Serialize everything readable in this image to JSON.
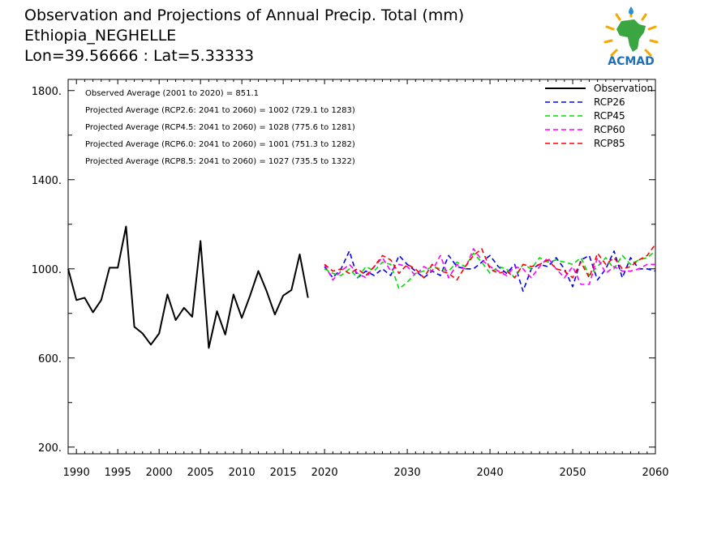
{
  "title": {
    "line1": "Observation and Projections of Annual Precip. Total (mm)",
    "line2": "Ethiopia_NEGHELLE",
    "line3": "Lon=39.56666 : Lat=5.33333"
  },
  "logo": {
    "text": "ACMAD",
    "icon": "africa-map-logo"
  },
  "colors": {
    "Observation": "#000000",
    "RCP26": "#0000ff",
    "RCP45": "#00dd00",
    "RCP60": "#ff00ff",
    "RCP85": "#ff0000"
  },
  "chart_data": {
    "type": "line",
    "xlim": [
      1989,
      2060
    ],
    "ylim": [
      170,
      1850
    ],
    "yticks": [
      200,
      600,
      1000,
      1400,
      1800
    ],
    "ytick_labels": [
      "200.",
      "600.",
      "1000.",
      "1400.",
      "1800."
    ],
    "xticks": [
      1990,
      1995,
      2000,
      2005,
      2010,
      2015,
      2020,
      2030,
      2040,
      2050,
      2060
    ],
    "xtick_labels": [
      "1990",
      "1995",
      "2000",
      "2005",
      "2010",
      "2015",
      "2020",
      "2030",
      "2040",
      "2050",
      "2060"
    ],
    "annotations": [
      "Observed Average (2001 to 2020) = 851.1",
      "Projected Average (RCP2.6: 2041 to 2060) = 1002 (729.1 to 1283)",
      "Projected Average (RCP4.5: 2041 to 2060) = 1028 (775.6 to 1281)",
      "Projected Average (RCP6.0: 2041 to 2060) = 1001 (751.3 to 1282)",
      "Projected Average (RCP8.5: 2041 to 2060) = 1027 (735.5 to 1322)"
    ],
    "legend_position": "top-right",
    "series": [
      {
        "name": "Observation",
        "style": "solid",
        "x": [
          1989,
          1990,
          1991,
          1992,
          1993,
          1994,
          1995,
          1996,
          1997,
          1998,
          1999,
          2000,
          2001,
          2002,
          2003,
          2004,
          2005,
          2006,
          2007,
          2008,
          2009,
          2010,
          2011,
          2012,
          2013,
          2014,
          2015,
          2016,
          2017,
          2018,
          2019,
          2020
        ],
        "values": [
          1000,
          860,
          870,
          805,
          860,
          1005,
          1005,
          1190,
          740,
          710,
          660,
          710,
          885,
          770,
          825,
          785,
          1125,
          645,
          810,
          705,
          885,
          780,
          880,
          990,
          900,
          795,
          880,
          905,
          1065,
          870,
          null,
          null
        ]
      },
      {
        "name": "RCP26",
        "style": "dashed",
        "x": [
          2020,
          2021,
          2022,
          2023,
          2024,
          2025,
          2026,
          2027,
          2028,
          2029,
          2030,
          2031,
          2032,
          2033,
          2034,
          2035,
          2036,
          2037,
          2038,
          2039,
          2040,
          2041,
          2042,
          2043,
          2044,
          2045,
          2046,
          2047,
          2048,
          2049,
          2050,
          2051,
          2052,
          2053,
          2054,
          2055,
          2056,
          2057,
          2058,
          2059,
          2060
        ],
        "values": [
          1010,
          960,
          1000,
          1080,
          960,
          990,
          970,
          1000,
          970,
          1060,
          1020,
          990,
          960,
          990,
          970,
          1060,
          1010,
          1000,
          1000,
          1030,
          1060,
          1010,
          980,
          1020,
          900,
          1000,
          1020,
          1010,
          1050,
          1000,
          920,
          1040,
          1060,
          950,
          1000,
          1080,
          960,
          1050,
          1000,
          1000,
          990
        ]
      },
      {
        "name": "RCP45",
        "style": "dashed",
        "x": [
          2020,
          2021,
          2022,
          2023,
          2024,
          2025,
          2026,
          2027,
          2028,
          2029,
          2030,
          2031,
          2032,
          2033,
          2034,
          2035,
          2036,
          2037,
          2038,
          2039,
          2040,
          2041,
          2042,
          2043,
          2044,
          2045,
          2046,
          2047,
          2048,
          2049,
          2050,
          2051,
          2052,
          2053,
          2054,
          2055,
          2056,
          2057,
          2058,
          2059,
          2060
        ],
        "values": [
          1000,
          980,
          970,
          1000,
          960,
          1010,
          990,
          1030,
          1020,
          910,
          940,
          980,
          990,
          1010,
          1000,
          990,
          1030,
          1010,
          1070,
          1030,
          980,
          1010,
          1000,
          960,
          1020,
          1000,
          1050,
          1030,
          1040,
          1030,
          1020,
          1050,
          970,
          1010,
          1050,
          1000,
          1060,
          1020,
          1040,
          1050,
          1080
        ]
      },
      {
        "name": "RCP60",
        "style": "dashed",
        "x": [
          2020,
          2021,
          2022,
          2023,
          2024,
          2025,
          2026,
          2027,
          2028,
          2029,
          2030,
          2031,
          2032,
          2033,
          2034,
          2035,
          2036,
          2037,
          2038,
          2039,
          2040,
          2041,
          2042,
          2043,
          2044,
          2045,
          2046,
          2047,
          2048,
          2049,
          2050,
          2051,
          2052,
          2053,
          2054,
          2055,
          2056,
          2057,
          2058,
          2059,
          2060
        ],
        "values": [
          1020,
          950,
          990,
          1020,
          980,
          960,
          1010,
          1050,
          990,
          1020,
          1010,
          970,
          1010,
          990,
          1060,
          960,
          1020,
          1000,
          1090,
          1040,
          1010,
          990,
          970,
          1010,
          1000,
          960,
          1010,
          1050,
          1000,
          960,
          1010,
          930,
          930,
          1050,
          980,
          1010,
          990,
          990,
          1000,
          1020,
          1020
        ]
      },
      {
        "name": "RCP85",
        "style": "dashed",
        "x": [
          2020,
          2021,
          2022,
          2023,
          2024,
          2025,
          2026,
          2027,
          2028,
          2029,
          2030,
          2031,
          2032,
          2033,
          2034,
          2035,
          2036,
          2037,
          2038,
          2039,
          2040,
          2041,
          2042,
          2043,
          2044,
          2045,
          2046,
          2047,
          2048,
          2049,
          2050,
          2051,
          2052,
          2053,
          2054,
          2055,
          2056,
          2057,
          2058,
          2059,
          2060
        ],
        "values": [
          1020,
          990,
          1000,
          980,
          1000,
          970,
          1010,
          1060,
          1040,
          980,
          1020,
          1000,
          960,
          1020,
          990,
          980,
          950,
          1010,
          1060,
          1090,
          1000,
          980,
          990,
          960,
          1020,
          1010,
          1020,
          1040,
          1000,
          990,
          960,
          1030,
          960,
          1070,
          1020,
          1050,
          1000,
          1010,
          1040,
          1060,
          1110
        ]
      }
    ]
  }
}
